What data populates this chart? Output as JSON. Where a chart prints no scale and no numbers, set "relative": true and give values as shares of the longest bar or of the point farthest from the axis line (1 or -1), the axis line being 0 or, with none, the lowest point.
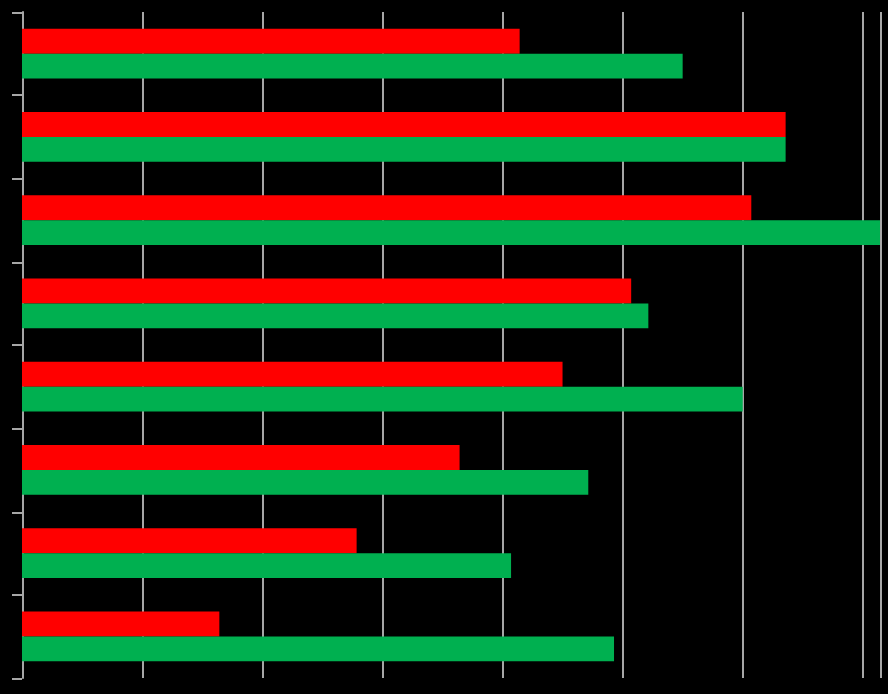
{
  "chart_data": {
    "type": "bar",
    "orientation": "horizontal",
    "relative": true,
    "grid": "x",
    "categories": [
      null,
      null,
      null,
      null,
      null,
      null,
      null,
      null
    ],
    "series": [
      {
        "color": "#ff0000",
        "values": [
          0.58,
          0.89,
          0.85,
          0.71,
          0.63,
          0.51,
          0.39,
          0.23
        ]
      },
      {
        "color": "#00b050",
        "values": [
          0.77,
          0.89,
          1,
          0.73,
          0.84,
          0.66,
          0.57,
          0.69
        ]
      }
    ]
  }
}
